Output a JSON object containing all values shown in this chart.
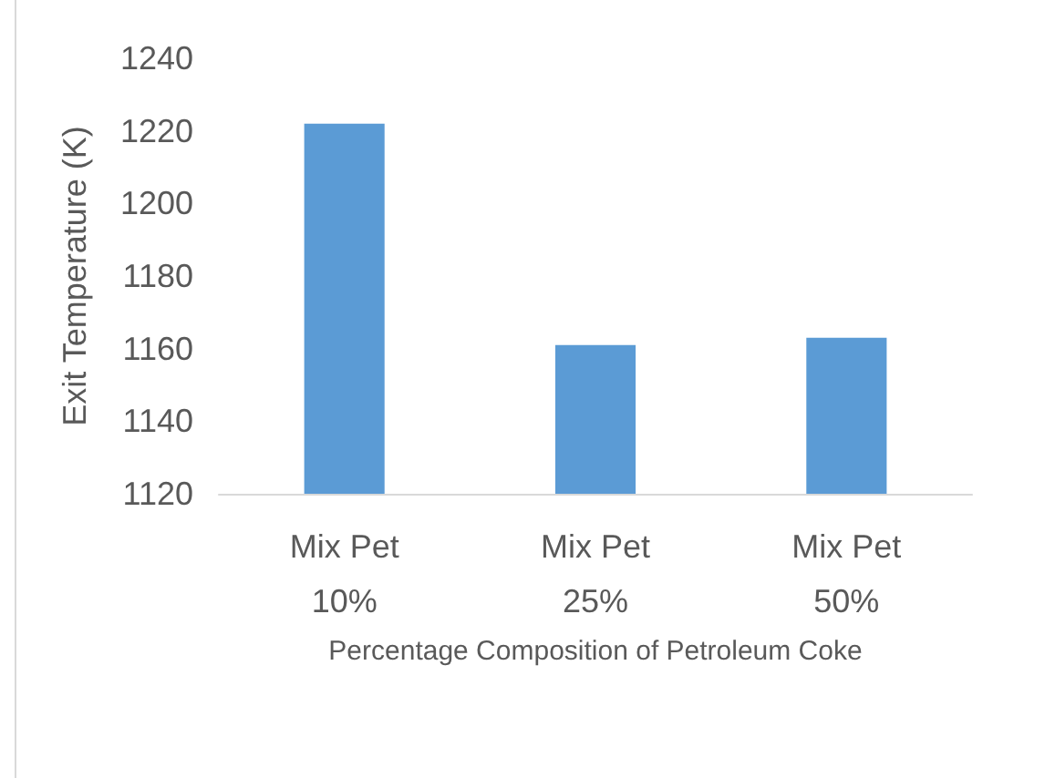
{
  "chart_data": {
    "type": "bar",
    "xlabel": "Percentage Composition of Petroleum Coke",
    "ylabel": "Exit Temperature (K)",
    "categories": [
      "Mix Pet\n10%",
      "Mix Pet\n25%",
      "Mix Pet\n50%"
    ],
    "values": [
      1222,
      1161,
      1163
    ],
    "color": "#5b9bd5",
    "ylim": [
      1120,
      1240
    ],
    "yticks": [
      1120,
      1140,
      1160,
      1180,
      1200,
      1220,
      1240
    ],
    "grid": false
  }
}
